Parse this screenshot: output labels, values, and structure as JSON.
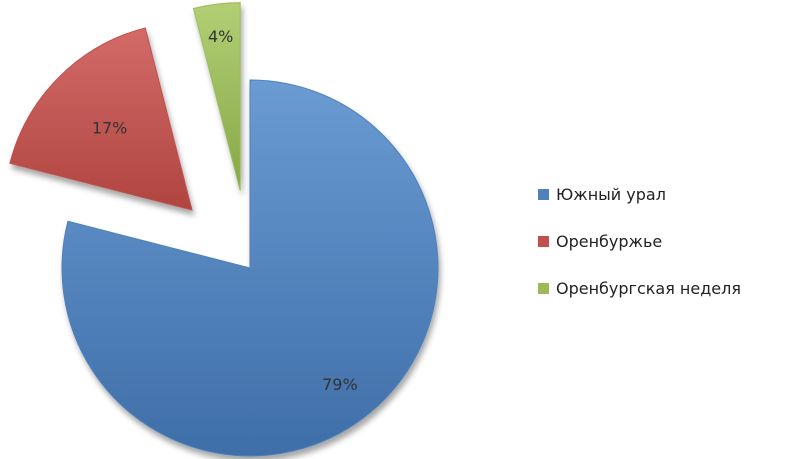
{
  "chart_data": {
    "type": "pie",
    "title": "",
    "exploded": true,
    "slices": [
      {
        "name": "Южный урал",
        "value": 79,
        "label": "79%",
        "color": "#4f81bd"
      },
      {
        "name": "Оренбуржье",
        "value": 17,
        "label": "17%",
        "color": "#c0504d"
      },
      {
        "name": "Оренбургская неделя",
        "value": 4,
        "label": "4%",
        "color": "#9bbb59"
      }
    ],
    "legend_position": "right"
  }
}
